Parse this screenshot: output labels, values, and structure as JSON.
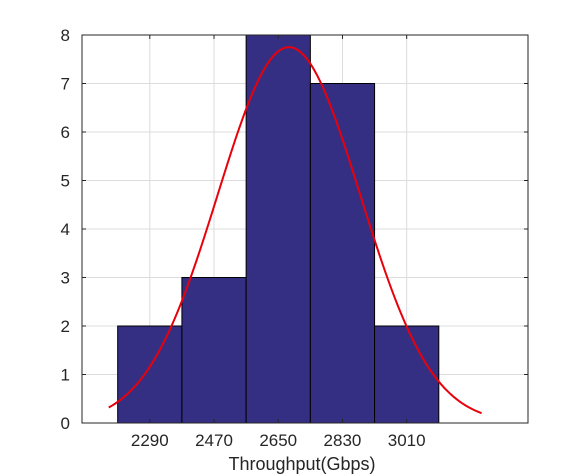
{
  "chart_data": {
    "type": "bar",
    "title": "",
    "xlabel": "Throughput(Gbps)",
    "ylabel": "",
    "bin_width": 180,
    "bin_centers": [
      2290,
      2470,
      2650,
      2830,
      3010
    ],
    "categories": [
      "2290",
      "2470",
      "2650",
      "2830",
      "3010"
    ],
    "values": [
      2,
      3,
      8,
      7,
      2
    ],
    "xlim": [
      2100,
      3350
    ],
    "ylim": [
      0,
      8
    ],
    "yticks": [
      "0",
      "1",
      "2",
      "3",
      "4",
      "5",
      "6",
      "7",
      "8"
    ],
    "xgrid_at": [
      2290,
      2470,
      2650,
      2830,
      3010
    ],
    "grid": true,
    "fit_curve": {
      "type": "normal",
      "mean": 2680,
      "std": 200,
      "peak": 7.75,
      "x_range": [
        2175,
        3220
      ]
    },
    "colors": {
      "bar_fill": "#352F83",
      "bar_edge": "#000000",
      "curve": "#E8000B",
      "grid": "#DCDCDC"
    }
  }
}
